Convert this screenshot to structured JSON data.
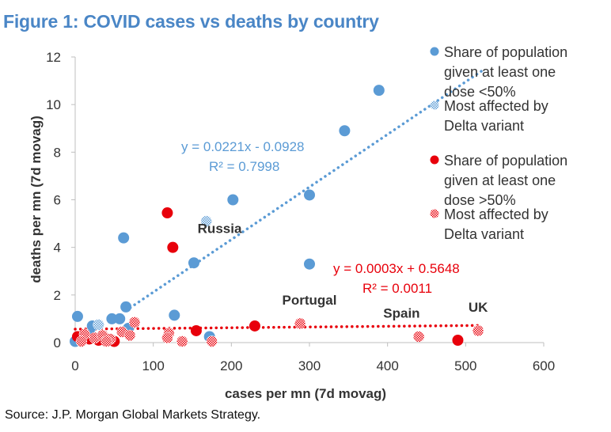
{
  "title": "Figure 1: COVID cases vs deaths by country",
  "source": "Source: J.P. Morgan Global Markets Strategy.",
  "colors": {
    "title": "#4a86c6",
    "blue": "#5b9bd5",
    "red": "#e8000b",
    "axis": "#bfbfbf",
    "text": "#333333"
  },
  "chart_data": {
    "type": "scatter",
    "xlabel": "cases per mn (7d movag)",
    "ylabel": "deaths per mn (7d movag)",
    "xlim": [
      0,
      600
    ],
    "ylim": [
      0,
      12
    ],
    "xticks": [
      0,
      100,
      200,
      300,
      400,
      500,
      600
    ],
    "yticks": [
      0,
      2,
      4,
      6,
      8,
      10,
      12
    ],
    "grid": false,
    "legend_position": "right",
    "legend": [
      {
        "label_lines": [
          "Share of population",
          "given at least one",
          "dose <50%"
        ],
        "marker": "solid-blue"
      },
      {
        "label_lines": [
          "Most affected by",
          "Delta variant"
        ],
        "marker": "hatched-blue"
      },
      {
        "label_lines": [
          "Share of population",
          "given at least one",
          "dose >50%"
        ],
        "marker": "solid-red"
      },
      {
        "label_lines": [
          "Most affected by",
          "Delta variant"
        ],
        "marker": "hatched-red"
      }
    ],
    "series": [
      {
        "marker": "solid-blue",
        "points": [
          [
            389,
            10.6
          ],
          [
            345,
            8.9
          ],
          [
            300,
            6.2
          ],
          [
            202,
            6.0
          ],
          [
            62,
            4.4
          ],
          [
            152,
            3.35
          ],
          [
            300,
            3.3
          ],
          [
            65,
            1.5
          ],
          [
            127,
            1.15
          ],
          [
            3,
            1.1
          ],
          [
            47,
            1.0
          ],
          [
            57,
            1.0
          ],
          [
            68,
            0.6
          ],
          [
            22,
            0.7
          ],
          [
            172,
            0.25
          ],
          [
            0,
            0.05
          ],
          [
            5,
            0.15
          ],
          [
            20,
            0.3
          ]
        ]
      },
      {
        "marker": "hatched-blue",
        "points": [
          [
            168,
            5.1
          ],
          [
            30,
            0.75
          ]
        ]
      },
      {
        "marker": "solid-red",
        "points": [
          [
            118,
            5.45
          ],
          [
            125,
            4.0
          ],
          [
            230,
            0.7
          ],
          [
            155,
            0.5
          ],
          [
            490,
            0.1
          ],
          [
            3,
            0.25
          ],
          [
            18,
            0.15
          ],
          [
            30,
            0.1
          ],
          [
            50,
            0.05
          ]
        ]
      },
      {
        "marker": "hatched-red",
        "points": [
          [
            288,
            0.8
          ],
          [
            516,
            0.5
          ],
          [
            440,
            0.25
          ],
          [
            76,
            0.85
          ],
          [
            60,
            0.45
          ],
          [
            120,
            0.4
          ],
          [
            118,
            0.2
          ],
          [
            137,
            0.05
          ],
          [
            175,
            0.05
          ],
          [
            12,
            0.35
          ],
          [
            25,
            0.2
          ],
          [
            35,
            0.3
          ],
          [
            45,
            0.15
          ],
          [
            70,
            0.3
          ],
          [
            8,
            0.05
          ],
          [
            40,
            0.05
          ]
        ]
      }
    ],
    "trendlines": [
      {
        "name": "blue",
        "slope": 0.0221,
        "intercept": -0.0928,
        "x_from": 65,
        "x_to": 520,
        "equation": "y = 0.0221x - 0.0928",
        "r2": "R² = 0.7998"
      },
      {
        "name": "red",
        "slope": 0.0003,
        "intercept": 0.5648,
        "x_from": 0,
        "x_to": 520,
        "equation": "y = 0.0003x + 0.5648",
        "r2": "R² = 0.0011"
      }
    ],
    "annotations": [
      {
        "text": "Russia",
        "x": 185,
        "y": 4.6
      },
      {
        "text": "Portugal",
        "x": 300,
        "y": 1.6
      },
      {
        "text": "Spain",
        "x": 418,
        "y": 1.05
      },
      {
        "text": "UK",
        "x": 516,
        "y": 1.3
      }
    ]
  }
}
